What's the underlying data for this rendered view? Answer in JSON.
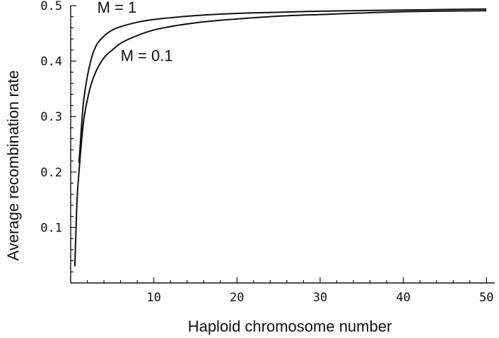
{
  "chart_data": {
    "type": "line",
    "title": "",
    "xlabel": "Haploid chromosome number",
    "ylabel": "Average recombination rate",
    "xlim": [
      0,
      51
    ],
    "ylim": [
      0,
      0.5
    ],
    "grid": false,
    "legend": "none",
    "x_ticks": [
      {
        "value": 10,
        "label": "10"
      },
      {
        "value": 20,
        "label": "20"
      },
      {
        "value": 30,
        "label": "30"
      },
      {
        "value": 40,
        "label": "40"
      },
      {
        "value": 50,
        "label": "50"
      }
    ],
    "y_ticks": [
      {
        "value": 0.1,
        "label": "0.1"
      },
      {
        "value": 0.2,
        "label": "0.2"
      },
      {
        "value": 0.3,
        "label": "0.3"
      },
      {
        "value": 0.4,
        "label": "0.4"
      },
      {
        "value": 0.5,
        "label": "0.5"
      }
    ],
    "series": [
      {
        "name": "M = 1",
        "color": "#111111",
        "x": [
          1,
          1.5,
          2,
          2.5,
          3,
          4,
          5,
          6,
          8,
          10,
          15,
          20,
          25,
          30,
          40,
          50
        ],
        "y": [
          0.216,
          0.32,
          0.372,
          0.405,
          0.426,
          0.445,
          0.456,
          0.462,
          0.47,
          0.475,
          0.482,
          0.486,
          0.488,
          0.49,
          0.492,
          0.494
        ]
      },
      {
        "name": "M = 0.1",
        "color": "#111111",
        "x": [
          0.5,
          0.75,
          1,
          1.5,
          2,
          2.5,
          3,
          4,
          5,
          6,
          8,
          10,
          15,
          20,
          25,
          30,
          40,
          50
        ],
        "y": [
          0.03,
          0.145,
          0.2,
          0.285,
          0.33,
          0.36,
          0.38,
          0.406,
          0.42,
          0.432,
          0.446,
          0.456,
          0.469,
          0.476,
          0.481,
          0.484,
          0.489,
          0.491
        ]
      }
    ],
    "annotations": [
      {
        "text": "M = 1",
        "x": 3.2,
        "y": 0.487
      },
      {
        "text": "M = 0.1",
        "x": 6.0,
        "y": 0.4
      }
    ]
  }
}
